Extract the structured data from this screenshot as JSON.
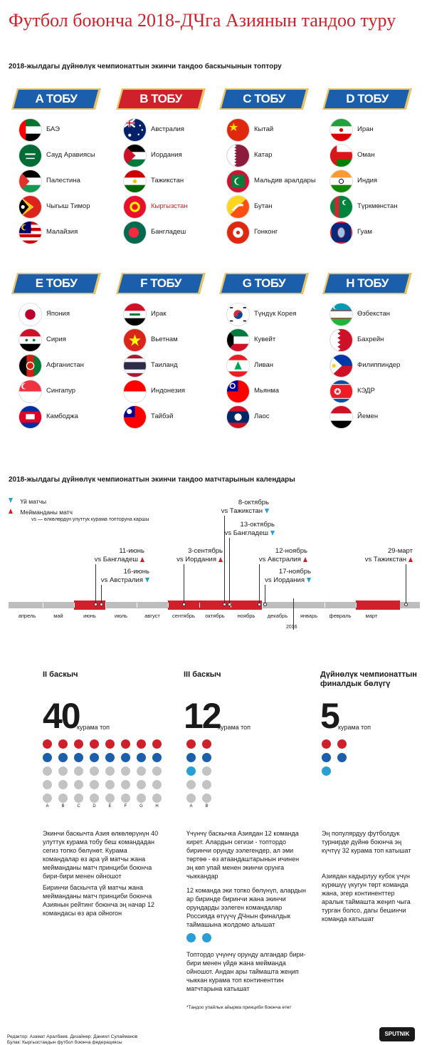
{
  "title": "Футбол боюнча 2018-ДЧга Азиянын тандоо туру",
  "groups_title": "2018-жылдагы дүйнөлүк чемпионаттын экинчи тандоо баскычынын топтору",
  "groups": [
    {
      "label": "A ТОБУ",
      "color": "#1b5eab",
      "teams": [
        {
          "name": "БАЭ",
          "flag": "uae"
        },
        {
          "name": "Сауд Аравиясы",
          "flag": "ksa"
        },
        {
          "name": "Палестина",
          "flag": "palestine"
        },
        {
          "name": "Чыгыш Тимор",
          "flag": "timor"
        },
        {
          "name": "Малайзия",
          "flag": "malaysia"
        }
      ]
    },
    {
      "label": "B ТОБУ",
      "color": "#d0202c",
      "teams": [
        {
          "name": "Австралия",
          "flag": "australia"
        },
        {
          "name": "Иордания",
          "flag": "jordan"
        },
        {
          "name": "Тажикстан",
          "flag": "tajikistan"
        },
        {
          "name": "Кыргызстан",
          "flag": "kyrgyzstan",
          "highlight": true
        },
        {
          "name": "Бангладеш",
          "flag": "bangladesh"
        }
      ]
    },
    {
      "label": "C ТОБУ",
      "color": "#1b5eab",
      "teams": [
        {
          "name": "Кытай",
          "flag": "china"
        },
        {
          "name": "Катар",
          "flag": "qatar"
        },
        {
          "name": "Мальдив аралдары",
          "flag": "maldives"
        },
        {
          "name": "Бутан",
          "flag": "bhutan"
        },
        {
          "name": "Гонконг",
          "flag": "hongkong"
        }
      ]
    },
    {
      "label": "D ТОБУ",
      "color": "#1b5eab",
      "teams": [
        {
          "name": "Иран",
          "flag": "iran"
        },
        {
          "name": "Оман",
          "flag": "oman"
        },
        {
          "name": "Индия",
          "flag": "india"
        },
        {
          "name": "Түркмөнстан",
          "flag": "turkmenistan"
        },
        {
          "name": "Гуам",
          "flag": "guam"
        }
      ]
    },
    {
      "label": "E ТОБУ",
      "color": "#1b5eab",
      "teams": [
        {
          "name": "Япония",
          "flag": "japan"
        },
        {
          "name": "Сирия",
          "flag": "syria"
        },
        {
          "name": "Афганистан",
          "flag": "afghanistan"
        },
        {
          "name": "Сингапур",
          "flag": "singapore"
        },
        {
          "name": "Камбоджа",
          "flag": "cambodia"
        }
      ]
    },
    {
      "label": "F ТОБУ",
      "color": "#1b5eab",
      "teams": [
        {
          "name": "Ирак",
          "flag": "iraq"
        },
        {
          "name": "Вьетнам",
          "flag": "vietnam"
        },
        {
          "name": "Таиланд",
          "flag": "thailand"
        },
        {
          "name": "Индонезия",
          "flag": "indonesia"
        },
        {
          "name": "Тайбэй",
          "flag": "taipei"
        }
      ]
    },
    {
      "label": "G ТОБУ",
      "color": "#1b5eab",
      "teams": [
        {
          "name": "Түндүк Корея",
          "flag": "skorea"
        },
        {
          "name": "Кувейт",
          "flag": "kuwait"
        },
        {
          "name": "Ливан",
          "flag": "lebanon"
        },
        {
          "name": "Мьянма",
          "flag": "myanmar"
        },
        {
          "name": "Лаос",
          "flag": "laos"
        }
      ]
    },
    {
      "label": "H ТОБУ",
      "color": "#1b5eab",
      "teams": [
        {
          "name": "Өзбекстан",
          "flag": "uzbekistan"
        },
        {
          "name": "Бахрейн",
          "flag": "bahrain"
        },
        {
          "name": "Филиппиндер",
          "flag": "philippines"
        },
        {
          "name": "КЭДР",
          "flag": "nkorea"
        },
        {
          "name": "Йемен",
          "flag": "yemen"
        }
      ]
    }
  ],
  "calendar": {
    "title": "2018-жылдагы дүйнөлүк чемпионаттын экинчи тандоо матчтарынын календары",
    "legend": {
      "home": "Үй матчы",
      "away": "Мейманданы матч",
      "vs_note": "vs — өлкөлөрдүн улуттук курама топторуна каршы"
    },
    "months": [
      "апрель",
      "май",
      "июнь",
      "июль",
      "август",
      "сентябрь",
      "октябрь",
      "ноябрь",
      "декабрь",
      "январь",
      "февраль",
      "март"
    ],
    "year_label": "2016",
    "events": [
      {
        "date": "11-июнь",
        "opponent": "vs Бангладеш",
        "type": "up"
      },
      {
        "date": "16-июнь",
        "opponent": "vs Австралия",
        "type": "down"
      },
      {
        "date": "3-сентябрь",
        "opponent": "vs Иордания",
        "type": "up"
      },
      {
        "date": "8-октябрь",
        "opponent": "vs Тажикстан",
        "type": "down"
      },
      {
        "date": "13-октябрь",
        "opponent": "vs Бангладеш",
        "type": "down"
      },
      {
        "date": "12-ноябрь",
        "opponent": "vs Австралия",
        "type": "up"
      },
      {
        "date": "17-ноябрь",
        "opponent": "vs Иордания",
        "type": "down"
      },
      {
        "date": "29-март",
        "opponent": "vs Тажикстан",
        "type": "up"
      }
    ]
  },
  "stages": [
    {
      "heading": "II баскыч",
      "number": "40",
      "unit": "курама топ",
      "letters": [
        "A",
        "B",
        "C",
        "D",
        "E",
        "F",
        "G",
        "H"
      ],
      "paragraphs": [
        "Экинчи баскычта Азия өлкөлөрүнүн 40 улуттук курама тобу беш командадан сегиз топко бөлүнөт. Курама командалар өз ара үй матчы жана мейманданы матч принциби боюнча бири-бири менен ойношот",
        "Биринчи баскычта үй матчы жана мейманданы матч принциби боюнча Азиянын рейтинг боюнча эң начар 12 командасы өз ара ойногон"
      ]
    },
    {
      "heading": "III баскыч",
      "number": "12",
      "unit": "курама топ",
      "letters": [
        "A",
        "B"
      ],
      "paragraphs": [
        "Үчүнчү баскычка Азиядан 12 команда кирет. Алардын сегизи - топтордо биринчи орунду ээлегендер, ал эми төртөө - өз атаандаштарынын ичинен эң көп упай менен экинчи орунга чыккандар",
        "12 команда эки топко бөлүнүп, алардын ар биринде биринчи жана экинчи орундарды ээлеген командалар Россияда өтүүчү ДЧнын финалдык таймашына жолдомо алышат",
        "Топтордо үчүнчү орунду алгандар бири-бири менен үйдө жана мейманда ойношот. Андан ары таймашта жеңип чыккан курама топ континенттин матчтарына катышат"
      ],
      "footnote": "*Тандоо упайлык айырма принциби боюнча өтөт"
    },
    {
      "heading": "Дүйнөлүк чемпионаттын финалдык бөлүгү",
      "number": "5",
      "unit": "курама топ",
      "paragraphs": [
        "Эң популярдуу футболдук турнирде дүйнө боюнча эң күчтүү 32 курама топ катышат",
        "Азиядан кадырлуу кубок үчүн күрөшүү үкугун төрт команда жана, эгер континенттер аралык таймашта жеңип чыга турган болсо, дагы бешинчи команда катышат"
      ]
    }
  ],
  "footer": {
    "credits": "Редактор: Азамат Аралбаев. Дизайнер: Даниил Сулайманов",
    "source": "Булак: Кыргызстандын футбол боюнча федерациясы",
    "brand": "SPUTNIK"
  },
  "colors": {
    "red": "#d0202c",
    "blue": "#1b5eab",
    "light_blue": "#2a9fd6",
    "grey": "#c3c3c3",
    "timeline": "#bdbdbd"
  }
}
